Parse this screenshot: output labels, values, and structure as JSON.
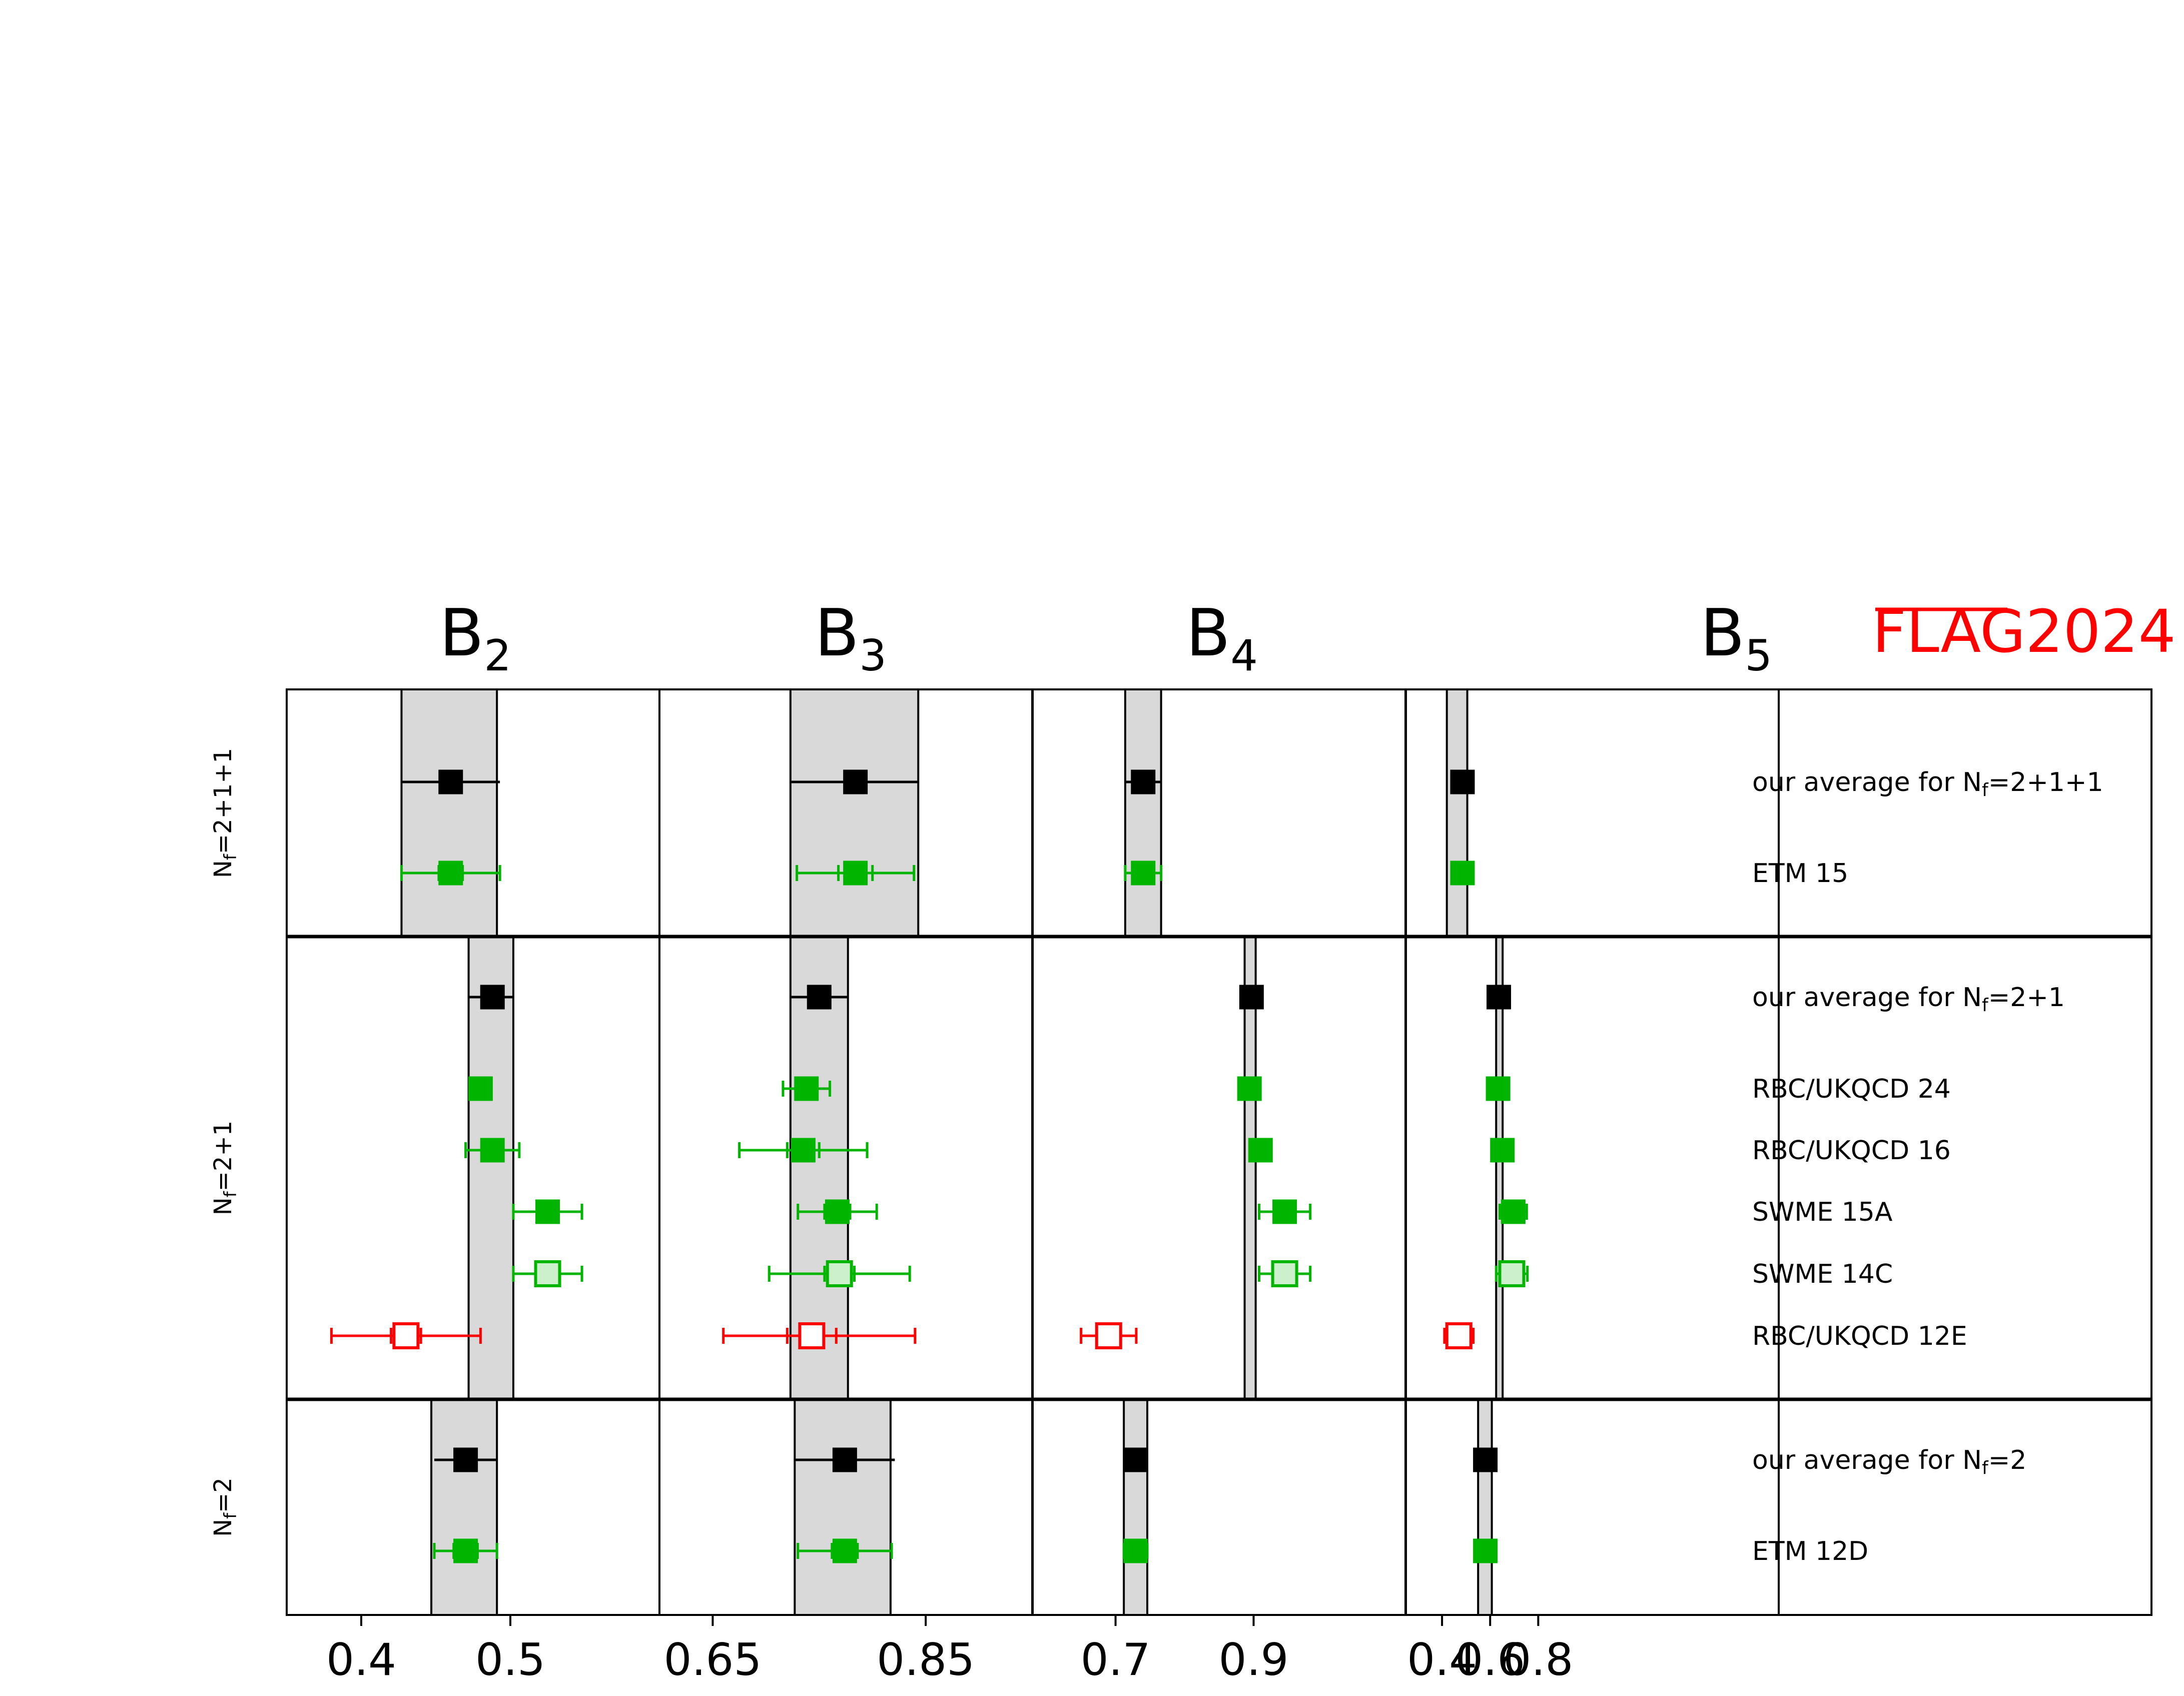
{
  "chart_data": {
    "type": "scatter",
    "watermark": "FLAG2024",
    "colors": {
      "average": "#000000",
      "green": "#00b400",
      "red": "#ff0000",
      "band": "#d9d9d9"
    },
    "groups": [
      {
        "label_main": "N",
        "label_sub": "f",
        "label_eq": "=2+1+1"
      },
      {
        "label_main": "N",
        "label_sub": "f",
        "label_eq": "=2+1"
      },
      {
        "label_main": "N",
        "label_sub": "f",
        "label_eq": "=2"
      }
    ],
    "rows": [
      {
        "label": "our average for N",
        "label_sub": "f",
        "label_eq": "=2+1+1",
        "group": 0,
        "kind": "average"
      },
      {
        "label": "ETM 15",
        "group": 0,
        "kind": "filled"
      },
      {
        "label": "our average for N",
        "label_sub": "f",
        "label_eq": "=2+1",
        "group": 1,
        "kind": "average"
      },
      {
        "label": "RBC/UKQCD 24",
        "group": 1,
        "kind": "filled"
      },
      {
        "label": "RBC/UKQCD 16",
        "group": 1,
        "kind": "filled"
      },
      {
        "label": "SWME 15A",
        "group": 1,
        "kind": "filled"
      },
      {
        "label": "SWME 14C",
        "group": 1,
        "kind": "light"
      },
      {
        "label": "RBC/UKQCD 12E",
        "group": 1,
        "kind": "open-red"
      },
      {
        "label": "our average for N",
        "label_sub": "f",
        "label_eq": "=2",
        "group": 2,
        "kind": "average"
      },
      {
        "label": "ETM 12D",
        "group": 2,
        "kind": "filled"
      }
    ],
    "panels": [
      {
        "title": "B",
        "title_sub": "2",
        "xlim": [
          0.35,
          0.6
        ],
        "ticks": [
          {
            "v": 0.4,
            "t": "0.4"
          },
          {
            "v": 0.5,
            "t": "0.5"
          }
        ],
        "bands": [
          [
            0.427,
            0.491
          ],
          [
            0.472,
            0.502
          ],
          [
            0.447,
            0.491
          ]
        ],
        "points": [
          {
            "row": 0,
            "x": 0.46,
            "lo": 0.427,
            "hi": 0.493,
            "lo2": null,
            "hi2": null
          },
          {
            "row": 1,
            "x": 0.46,
            "lo": 0.427,
            "hi": 0.493,
            "lo2": 0.452,
            "hi2": 0.468
          },
          {
            "row": 2,
            "x": 0.488,
            "lo": 0.472,
            "hi": 0.502,
            "lo2": null,
            "hi2": null
          },
          {
            "row": 3,
            "x": 0.48,
            "lo": 0.478,
            "hi": 0.482,
            "lo2": null,
            "hi2": null
          },
          {
            "row": 4,
            "x": 0.488,
            "lo": 0.47,
            "hi": 0.506,
            "lo2": 0.484,
            "hi2": 0.492
          },
          {
            "row": 5,
            "x": 0.525,
            "lo": 0.502,
            "hi": 0.548,
            "lo2": 0.52,
            "hi2": 0.53
          },
          {
            "row": 6,
            "x": 0.525,
            "lo": 0.502,
            "hi": 0.548,
            "lo2": 0.52,
            "hi2": 0.53
          },
          {
            "row": 7,
            "x": 0.43,
            "lo": 0.38,
            "hi": 0.48,
            "lo2": 0.42,
            "hi2": 0.44
          },
          {
            "row": 8,
            "x": 0.47,
            "lo": 0.449,
            "hi": 0.491,
            "lo2": null,
            "hi2": null
          },
          {
            "row": 9,
            "x": 0.47,
            "lo": 0.449,
            "hi": 0.491,
            "lo2": 0.462,
            "hi2": 0.478
          }
        ]
      },
      {
        "title": "B",
        "title_sub": "3",
        "xlim": [
          0.6,
          0.95
        ],
        "ticks": [
          {
            "v": 0.65,
            "t": "0.65"
          },
          {
            "v": 0.85,
            "t": "0.85"
          }
        ],
        "bands": [
          [
            0.723,
            0.843
          ],
          [
            0.723,
            0.777
          ],
          [
            0.727,
            0.817
          ]
        ],
        "points": [
          {
            "row": 0,
            "x": 0.784,
            "lo": 0.723,
            "hi": 0.843,
            "lo2": null,
            "hi2": null
          },
          {
            "row": 1,
            "x": 0.784,
            "lo": 0.729,
            "hi": 0.839,
            "lo2": 0.768,
            "hi2": 0.8
          },
          {
            "row": 2,
            "x": 0.75,
            "lo": 0.723,
            "hi": 0.777,
            "lo2": null,
            "hi2": null
          },
          {
            "row": 3,
            "x": 0.738,
            "lo": 0.716,
            "hi": 0.76,
            "lo2": 0.731,
            "hi2": 0.745
          },
          {
            "row": 4,
            "x": 0.735,
            "lo": 0.675,
            "hi": 0.795,
            "lo2": 0.72,
            "hi2": 0.75
          },
          {
            "row": 5,
            "x": 0.767,
            "lo": 0.73,
            "hi": 0.804,
            "lo2": 0.755,
            "hi2": 0.779
          },
          {
            "row": 6,
            "x": 0.769,
            "lo": 0.703,
            "hi": 0.835,
            "lo2": 0.755,
            "hi2": 0.783
          },
          {
            "row": 7,
            "x": 0.743,
            "lo": 0.66,
            "hi": 0.84,
            "lo2": 0.72,
            "hi2": 0.766
          },
          {
            "row": 8,
            "x": 0.774,
            "lo": 0.727,
            "hi": 0.821,
            "lo2": null,
            "hi2": null
          },
          {
            "row": 9,
            "x": 0.774,
            "lo": 0.73,
            "hi": 0.818,
            "lo2": 0.762,
            "hi2": 0.786
          }
        ]
      },
      {
        "title": "B",
        "title_sub": "4",
        "xlim": [
          0.58,
          1.12
        ],
        "ticks": [
          {
            "v": 0.7,
            "t": "0.7"
          },
          {
            "v": 0.9,
            "t": "0.9"
          }
        ],
        "bands": [
          [
            0.714,
            0.766
          ],
          [
            0.887,
            0.903
          ],
          [
            0.712,
            0.746
          ]
        ],
        "points": [
          {
            "row": 0,
            "x": 0.74,
            "lo": 0.714,
            "hi": 0.766,
            "lo2": null,
            "hi2": null
          },
          {
            "row": 1,
            "x": 0.74,
            "lo": 0.714,
            "hi": 0.766,
            "lo2": 0.731,
            "hi2": 0.749
          },
          {
            "row": 2,
            "x": 0.897,
            "lo": 0.894,
            "hi": 0.9,
            "lo2": null,
            "hi2": null
          },
          {
            "row": 3,
            "x": 0.894,
            "lo": 0.892,
            "hi": 0.896,
            "lo2": null,
            "hi2": null
          },
          {
            "row": 4,
            "x": 0.91,
            "lo": 0.9,
            "hi": 0.92,
            "lo2": 0.904,
            "hi2": 0.916
          },
          {
            "row": 5,
            "x": 0.945,
            "lo": 0.908,
            "hi": 0.982,
            "lo2": 0.937,
            "hi2": 0.953
          },
          {
            "row": 6,
            "x": 0.945,
            "lo": 0.908,
            "hi": 0.982,
            "lo2": 0.937,
            "hi2": 0.953
          },
          {
            "row": 7,
            "x": 0.69,
            "lo": 0.65,
            "hi": 0.73,
            "lo2": 0.686,
            "hi2": 0.694
          },
          {
            "row": 8,
            "x": 0.729,
            "lo": 0.712,
            "hi": 0.746,
            "lo2": null,
            "hi2": null
          },
          {
            "row": 9,
            "x": 0.729,
            "lo": 0.712,
            "hi": 0.746,
            "lo2": 0.72,
            "hi2": 0.738
          }
        ]
      },
      {
        "title": "B",
        "title_sub": "5",
        "xlim": [
          0.25,
          1.8
        ],
        "ticks": [
          {
            "v": 0.4,
            "t": "0.4"
          },
          {
            "v": 0.6,
            "t": "0.6"
          },
          {
            "v": 0.8,
            "t": "0.8"
          }
        ],
        "bands": [
          [
            0.42,
            0.505
          ],
          [
            0.625,
            0.652
          ],
          [
            0.55,
            0.607
          ]
        ],
        "points": [
          {
            "row": 0,
            "x": 0.485,
            "lo": 0.458,
            "hi": 0.512,
            "lo2": null,
            "hi2": null
          },
          {
            "row": 1,
            "x": 0.485,
            "lo": 0.458,
            "hi": 0.512,
            "lo2": 0.47,
            "hi2": 0.5
          },
          {
            "row": 2,
            "x": 0.636,
            "lo": 0.633,
            "hi": 0.639,
            "lo2": null,
            "hi2": null
          },
          {
            "row": 3,
            "x": 0.633,
            "lo": 0.631,
            "hi": 0.635,
            "lo2": null,
            "hi2": null
          },
          {
            "row": 4,
            "x": 0.651,
            "lo": 0.623,
            "hi": 0.679,
            "lo2": 0.643,
            "hi2": 0.659
          },
          {
            "row": 5,
            "x": 0.696,
            "lo": 0.64,
            "hi": 0.752,
            "lo2": 0.685,
            "hi2": 0.707
          },
          {
            "row": 6,
            "x": 0.69,
            "lo": 0.625,
            "hi": 0.755,
            "lo2": 0.679,
            "hi2": 0.701
          },
          {
            "row": 7,
            "x": 0.47,
            "lo": 0.41,
            "hi": 0.53,
            "lo2": 0.466,
            "hi2": 0.474
          },
          {
            "row": 8,
            "x": 0.58,
            "lo": 0.56,
            "hi": 0.6,
            "lo2": null,
            "hi2": null
          },
          {
            "row": 9,
            "x": 0.58,
            "lo": 0.565,
            "hi": 0.595,
            "lo2": 0.575,
            "hi2": 0.585
          }
        ]
      }
    ]
  }
}
